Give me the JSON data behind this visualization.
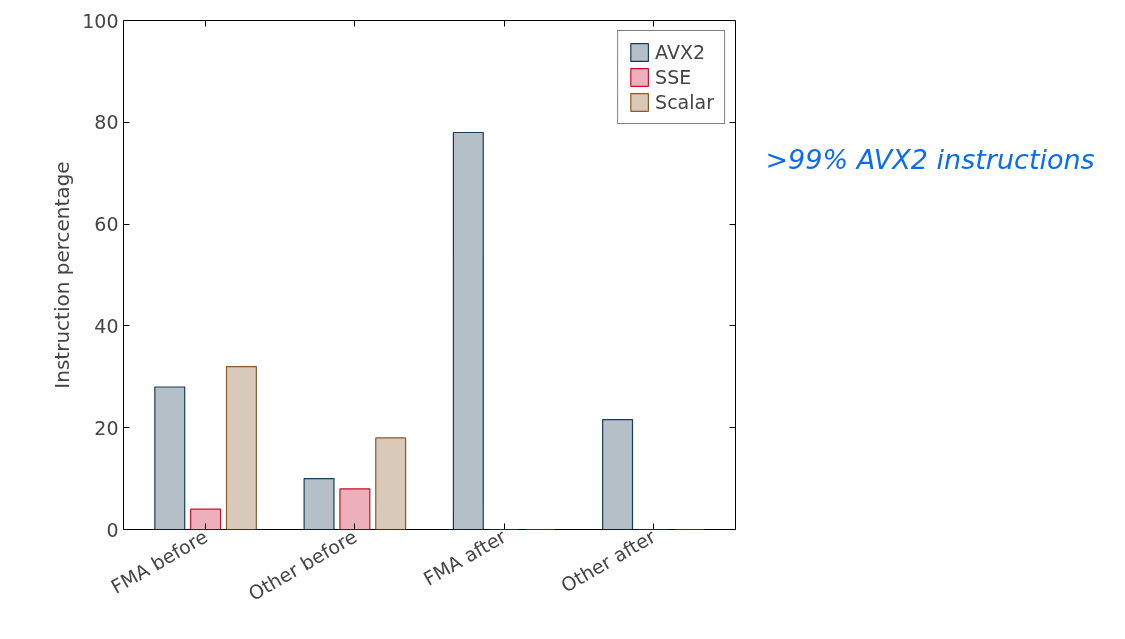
{
  "chart_data": {
    "type": "bar",
    "ylabel": "Instruction percentage",
    "categories": [
      "FMA before",
      "Other before",
      "FMA after",
      "Other after"
    ],
    "series": [
      {
        "name": "AVX2",
        "color": "#1a3d55",
        "values": [
          28,
          10,
          78,
          21.6
        ]
      },
      {
        "name": "SSE",
        "color": "#c8102e",
        "values": [
          4,
          8,
          0,
          0
        ]
      },
      {
        "name": "Scalar",
        "color": "#8b5a2b",
        "values": [
          32,
          18,
          0,
          0
        ]
      }
    ],
    "ylim": [
      0,
      100
    ],
    "yticks": [
      0,
      20,
      40,
      60,
      80,
      100
    ],
    "grid": false,
    "legend": "top right",
    "annotations": [
      ">99% AVX2 instructions"
    ]
  }
}
